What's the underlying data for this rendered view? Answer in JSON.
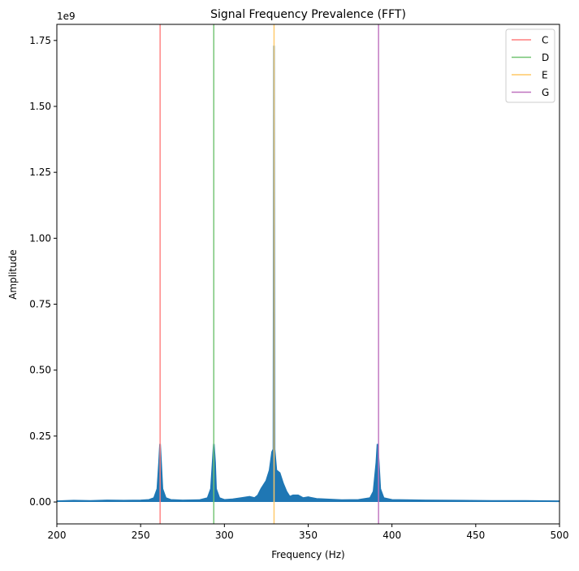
{
  "chart_data": {
    "type": "area",
    "title": "Signal Frequency Prevalence (FFT)",
    "xlabel": "Frequency (Hz)",
    "ylabel": "Amplitude",
    "y_scale_label": "1e9",
    "xlim": [
      200,
      500
    ],
    "ylim": [
      -0.083,
      1.811
    ],
    "x_ticks": [
      200,
      250,
      300,
      350,
      400,
      450,
      500
    ],
    "x_tick_labels": [
      "200",
      "250",
      "300",
      "350",
      "400",
      "450",
      "500"
    ],
    "y_ticks": [
      0,
      0.25,
      0.5,
      0.75,
      1.0,
      1.25,
      1.5,
      1.75
    ],
    "y_tick_labels": [
      "0.00",
      "0.25",
      "0.50",
      "0.75",
      "1.00",
      "1.25",
      "1.50",
      "1.75"
    ],
    "grid": false,
    "legend_position": "top-right",
    "series": [
      {
        "color": "#1f77b4",
        "points": [
          [
            200,
            0.003
          ],
          [
            210,
            0.005
          ],
          [
            220,
            0.004
          ],
          [
            230,
            0.006
          ],
          [
            240,
            0.005
          ],
          [
            250,
            0.006
          ],
          [
            255,
            0.008
          ],
          [
            258,
            0.015
          ],
          [
            260,
            0.05
          ],
          [
            261,
            0.15
          ],
          [
            261.6,
            0.22
          ],
          [
            262.2,
            0.15
          ],
          [
            263,
            0.05
          ],
          [
            265,
            0.015
          ],
          [
            268,
            0.008
          ],
          [
            275,
            0.006
          ],
          [
            285,
            0.007
          ],
          [
            290,
            0.015
          ],
          [
            292,
            0.05
          ],
          [
            293,
            0.15
          ],
          [
            293.7,
            0.22
          ],
          [
            294.4,
            0.15
          ],
          [
            295,
            0.05
          ],
          [
            297,
            0.015
          ],
          [
            300,
            0.008
          ],
          [
            305,
            0.01
          ],
          [
            310,
            0.015
          ],
          [
            315,
            0.02
          ],
          [
            318,
            0.015
          ],
          [
            320,
            0.025
          ],
          [
            322,
            0.05
          ],
          [
            325,
            0.08
          ],
          [
            327,
            0.12
          ],
          [
            328.5,
            0.19
          ],
          [
            329.3,
            0.2
          ],
          [
            329.6,
            1.73
          ],
          [
            329.9,
            0.2
          ],
          [
            331,
            0.12
          ],
          [
            333,
            0.11
          ],
          [
            335,
            0.07
          ],
          [
            337,
            0.04
          ],
          [
            339,
            0.02
          ],
          [
            341,
            0.025
          ],
          [
            344,
            0.025
          ],
          [
            347,
            0.015
          ],
          [
            350,
            0.018
          ],
          [
            355,
            0.012
          ],
          [
            360,
            0.01
          ],
          [
            370,
            0.007
          ],
          [
            380,
            0.008
          ],
          [
            387,
            0.015
          ],
          [
            389,
            0.04
          ],
          [
            390.7,
            0.15
          ],
          [
            391.4,
            0.22
          ],
          [
            392.1,
            0.15
          ],
          [
            393,
            0.05
          ],
          [
            395,
            0.015
          ],
          [
            400,
            0.008
          ],
          [
            420,
            0.006
          ],
          [
            440,
            0.005
          ],
          [
            460,
            0.004
          ],
          [
            480,
            0.004
          ],
          [
            500,
            0.003
          ]
        ]
      }
    ],
    "vlines": [
      {
        "name": "C",
        "x": 261.63,
        "color": "#ff7f7f"
      },
      {
        "name": "D",
        "x": 293.66,
        "color": "#72c472"
      },
      {
        "name": "E",
        "x": 329.63,
        "color": "#ffc966"
      },
      {
        "name": "G",
        "x": 392.0,
        "color": "#bf73bf"
      }
    ]
  }
}
